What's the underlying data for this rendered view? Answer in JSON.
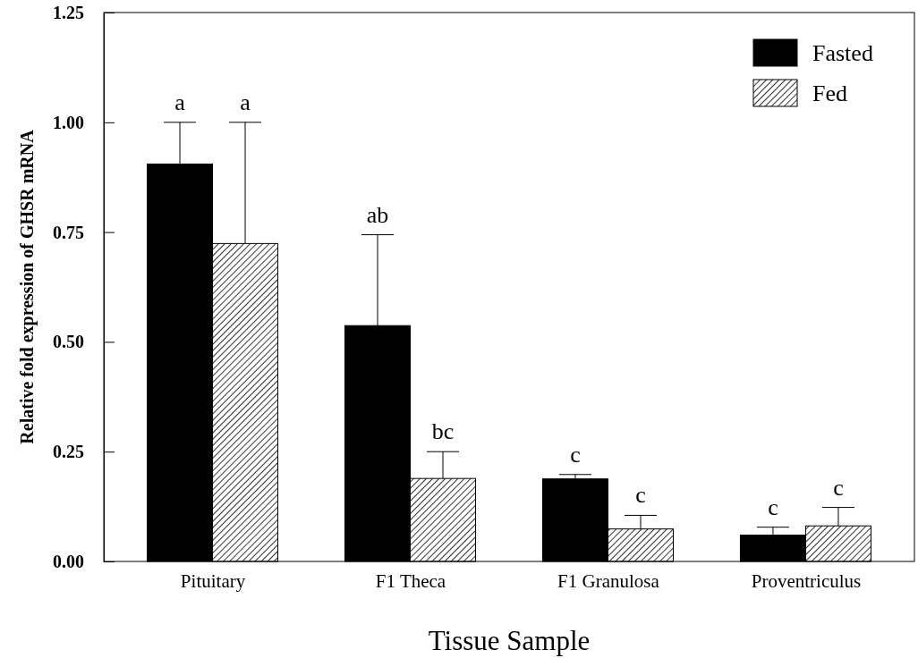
{
  "chart_data": {
    "type": "bar",
    "xlabel": "Tissue Sample",
    "ylabel": "Relative fold expression of GHSR mRNA",
    "categories": [
      "Pituitary",
      "F1 Theca",
      "F1 Granulosa",
      "Proventriculus"
    ],
    "series": [
      {
        "name": "Fasted",
        "color": "#000000",
        "values": [
          0.905,
          0.537,
          0.188,
          0.06
        ],
        "errors": [
          [
            0.905,
            1.0
          ],
          [
            0.537,
            0.744
          ],
          [
            0.188,
            0.198
          ],
          [
            0.06,
            0.078
          ]
        ]
      },
      {
        "name": "Fed",
        "color": "#000000",
        "values": [
          0.724,
          0.189,
          0.074,
          0.081
        ],
        "errors": [
          [
            0.724,
            1.0
          ],
          [
            0.189,
            0.25
          ],
          [
            0.074,
            0.105
          ],
          [
            0.081,
            0.123
          ]
        ]
      }
    ],
    "ylim": [
      0,
      1.25
    ],
    "yticks": [
      {
        "value": 0,
        "label": "0.00"
      },
      {
        "value": 0.25,
        "label": "0.25"
      },
      {
        "value": 0.5,
        "label": "0.50"
      },
      {
        "value": 0.75,
        "label": "0.75"
      },
      {
        "value": 1,
        "label": "1.00"
      },
      {
        "value": 1.25,
        "label": "1.25"
      }
    ],
    "annotations": [
      "a",
      "a",
      "ab",
      "bc",
      "c",
      "c",
      "c",
      "c"
    ],
    "legend": "top right",
    "grid": false
  }
}
